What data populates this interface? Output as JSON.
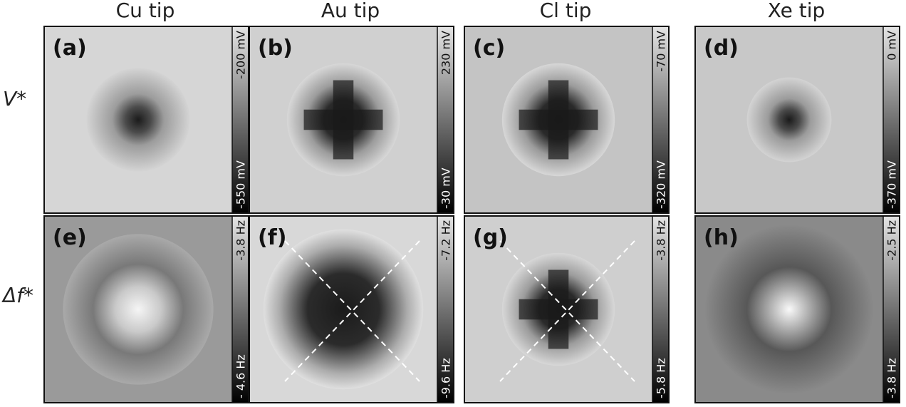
{
  "columns": [
    "Cu tip",
    "Au tip",
    "Cl tip",
    "Xe tip"
  ],
  "rows": [
    "V*",
    "Δf*"
  ],
  "panels": [
    {
      "label": "(a)",
      "colorbar_top": "-200 mV",
      "colorbar_bottom": "-550 mV"
    },
    {
      "label": "(b)",
      "colorbar_top": "230 mV",
      "colorbar_bottom": "-30 mV"
    },
    {
      "label": "(c)",
      "colorbar_top": "-70 mV",
      "colorbar_bottom": "-320 mV"
    },
    {
      "label": "(d)",
      "colorbar_top": "0 mV",
      "colorbar_bottom": "-370 mV"
    },
    {
      "label": "(e)",
      "colorbar_top": "-3.8 Hz",
      "colorbar_bottom": "- 4.6 Hz"
    },
    {
      "label": "(f)",
      "colorbar_top": "-7.2 Hz",
      "colorbar_bottom": "-9.6 Hz"
    },
    {
      "label": "(g)",
      "colorbar_top": "-3.8 Hz",
      "colorbar_bottom": "-5.8 Hz"
    },
    {
      "label": "(h)",
      "colorbar_top": "-2.5 Hz",
      "colorbar_bottom": "-3.8 Hz"
    }
  ]
}
